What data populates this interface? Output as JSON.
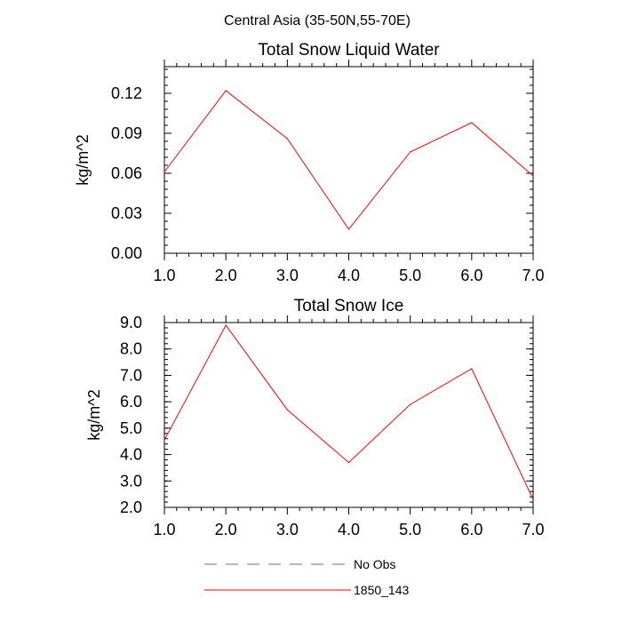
{
  "title": "Central Asia (35-50N,55-70E)",
  "chart_data": [
    {
      "type": "line",
      "title": "Total Snow Liquid Water",
      "xlabel": "",
      "ylabel": "kg/m^2",
      "xlim": [
        1,
        7
      ],
      "ylim": [
        0,
        0.14
      ],
      "xticks": [
        1,
        2,
        3,
        4,
        5,
        6,
        7
      ],
      "xtick_labels": [
        "1.0",
        "2.0",
        "3.0",
        "4.0",
        "5.0",
        "6.0",
        "7.0"
      ],
      "yticks": [
        0,
        0.03,
        0.06,
        0.09,
        0.12
      ],
      "ytick_labels": [
        "0.00",
        "0.03",
        "0.06",
        "0.09",
        "0.12"
      ],
      "yminor_step": 0.006,
      "grid": false,
      "series": [
        {
          "name": "1850_143",
          "color": "#ff0000",
          "x": [
            1,
            2,
            3,
            4,
            5,
            6,
            7
          ],
          "y": [
            0.061,
            0.122,
            0.086,
            0.018,
            0.076,
            0.098,
            0.058
          ]
        }
      ]
    },
    {
      "type": "line",
      "title": "Total Snow Ice",
      "xlabel": "",
      "ylabel": "kg/m^2",
      "xlim": [
        1,
        7
      ],
      "ylim": [
        2,
        9
      ],
      "xticks": [
        1,
        2,
        3,
        4,
        5,
        6,
        7
      ],
      "xtick_labels": [
        "1.0",
        "2.0",
        "3.0",
        "4.0",
        "5.0",
        "6.0",
        "7.0"
      ],
      "yticks": [
        2,
        3,
        4,
        5,
        6,
        7,
        8,
        9
      ],
      "ytick_labels": [
        "2.0",
        "3.0",
        "4.0",
        "5.0",
        "6.0",
        "7.0",
        "8.0",
        "9.0"
      ],
      "yminor_step": 0.2,
      "grid": false,
      "series": [
        {
          "name": "1850_143",
          "color": "#ff0000",
          "x": [
            1,
            2,
            3,
            4,
            5,
            6,
            7
          ],
          "y": [
            4.55,
            8.9,
            5.7,
            3.7,
            5.9,
            7.25,
            2.3
          ]
        }
      ]
    }
  ],
  "legend": {
    "placement": "bottom",
    "entries": [
      {
        "label": "No Obs",
        "color": "#6b6b9a",
        "style": "dashed"
      },
      {
        "label": "1850_143",
        "color": "#ff0000",
        "style": "solid"
      }
    ]
  }
}
